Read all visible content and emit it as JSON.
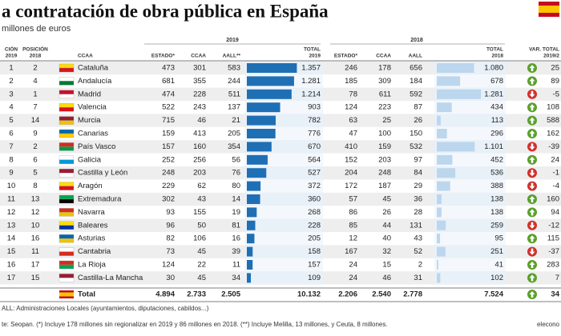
{
  "header": {
    "title": "a contratación de obra pública en España",
    "subtitle": "millones de euros"
  },
  "table": {
    "group_2019": "2019",
    "group_2018": "2018",
    "columns": [
      [
        "CIÓN",
        "2019"
      ],
      [
        "POSICIÓN",
        "2018"
      ],
      [
        "CCAA"
      ],
      [
        "ESTADO*"
      ],
      [
        "CCAA"
      ],
      [
        "AALL**"
      ],
      [
        "TOTAL",
        "2019"
      ],
      [
        "ESTADO*"
      ],
      [
        "CCAA"
      ],
      [
        "AALL"
      ],
      [
        "TOTAL",
        "2018"
      ],
      [
        "VAR. TOTAL",
        "2019/2"
      ]
    ],
    "rows": [
      [
        "1",
        "2",
        "Cataluña",
        "473",
        "301",
        "583",
        "1.357",
        "246",
        "178",
        "656",
        "1.080",
        "25"
      ],
      [
        "2",
        "4",
        "Andalucía",
        "681",
        "355",
        "244",
        "1.281",
        "185",
        "309",
        "184",
        "678",
        "89"
      ],
      [
        "3",
        "1",
        "Madrid",
        "474",
        "228",
        "511",
        "1.214",
        "78",
        "611",
        "592",
        "1.281",
        "-5"
      ],
      [
        "4",
        "7",
        "Valencia",
        "522",
        "243",
        "137",
        "903",
        "124",
        "223",
        "87",
        "434",
        "108"
      ],
      [
        "5",
        "14",
        "Murcia",
        "715",
        "46",
        "21",
        "782",
        "63",
        "25",
        "26",
        "113",
        "588"
      ],
      [
        "6",
        "9",
        "Canarias",
        "159",
        "413",
        "205",
        "776",
        "47",
        "100",
        "150",
        "296",
        "162"
      ],
      [
        "7",
        "2",
        "País Vasco",
        "157",
        "160",
        "354",
        "670",
        "410",
        "159",
        "532",
        "1.101",
        "-39"
      ],
      [
        "8",
        "6",
        "Galicia",
        "252",
        "256",
        "56",
        "564",
        "152",
        "203",
        "97",
        "452",
        "24"
      ],
      [
        "9",
        "5",
        "Castilla y León",
        "248",
        "203",
        "76",
        "527",
        "204",
        "248",
        "84",
        "536",
        "-1"
      ],
      [
        "10",
        "8",
        "Aragón",
        "229",
        "62",
        "80",
        "372",
        "172",
        "187",
        "29",
        "388",
        "-4"
      ],
      [
        "11",
        "13",
        "Extremadura",
        "302",
        "43",
        "14",
        "360",
        "57",
        "45",
        "36",
        "138",
        "160"
      ],
      [
        "12",
        "12",
        "Navarra",
        "93",
        "155",
        "19",
        "268",
        "86",
        "26",
        "28",
        "138",
        "94"
      ],
      [
        "13",
        "10",
        "Baleares",
        "96",
        "50",
        "81",
        "228",
        "85",
        "44",
        "131",
        "259",
        "-12"
      ],
      [
        "14",
        "16",
        "Asturias",
        "82",
        "106",
        "16",
        "205",
        "12",
        "40",
        "43",
        "95",
        "115"
      ],
      [
        "15",
        "11",
        "Cantabria",
        "73",
        "45",
        "39",
        "158",
        "167",
        "32",
        "52",
        "251",
        "-37"
      ],
      [
        "16",
        "17",
        "La Rioja",
        "124",
        "22",
        "11",
        "157",
        "24",
        "15",
        "2",
        "41",
        "283"
      ],
      [
        "17",
        "15",
        "Castilla-La Mancha",
        "30",
        "45",
        "34",
        "109",
        "24",
        "46",
        "31",
        "102",
        "7"
      ]
    ],
    "total": [
      "Total",
      "4.894",
      "2.733",
      "2.505",
      "10.132",
      "2.206",
      "2.540",
      "2.778",
      "7.524",
      "34"
    ]
  },
  "notes": [
    "ALL: Administraciones Locales (ayuntamientos, diputaciones, cabildos...)",
    "te: Seopan. (*) Incluye 178 millones sin regionalizar en 2019 y 86 millones en 2018. (**) Incluye Melilla, 13 millones, y Ceuta, 8 millones."
  ],
  "brand": "elecono"
}
